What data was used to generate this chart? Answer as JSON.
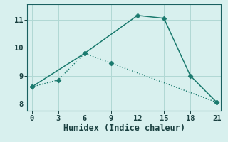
{
  "line1_x": [
    0,
    6,
    12,
    15,
    18,
    21
  ],
  "line1_y": [
    8.6,
    9.8,
    11.15,
    11.05,
    9.0,
    8.05
  ],
  "line2_x": [
    0,
    3,
    6,
    9,
    21
  ],
  "line2_y": [
    8.6,
    8.85,
    9.8,
    9.45,
    8.05
  ],
  "line_color": "#1a7a6e",
  "bg_color": "#d8f0ee",
  "grid_color": "#b0d8d4",
  "xlabel": "Humidex (Indice chaleur)",
  "xlim": [
    -0.5,
    21.5
  ],
  "ylim": [
    7.75,
    11.55
  ],
  "xticks": [
    0,
    3,
    6,
    9,
    12,
    15,
    18,
    21
  ],
  "yticks": [
    8,
    9,
    10,
    11
  ],
  "markersize": 3.5,
  "linewidth1": 1.1,
  "linewidth2": 1.0,
  "tick_fontsize": 7.5,
  "xlabel_fontsize": 8.5
}
